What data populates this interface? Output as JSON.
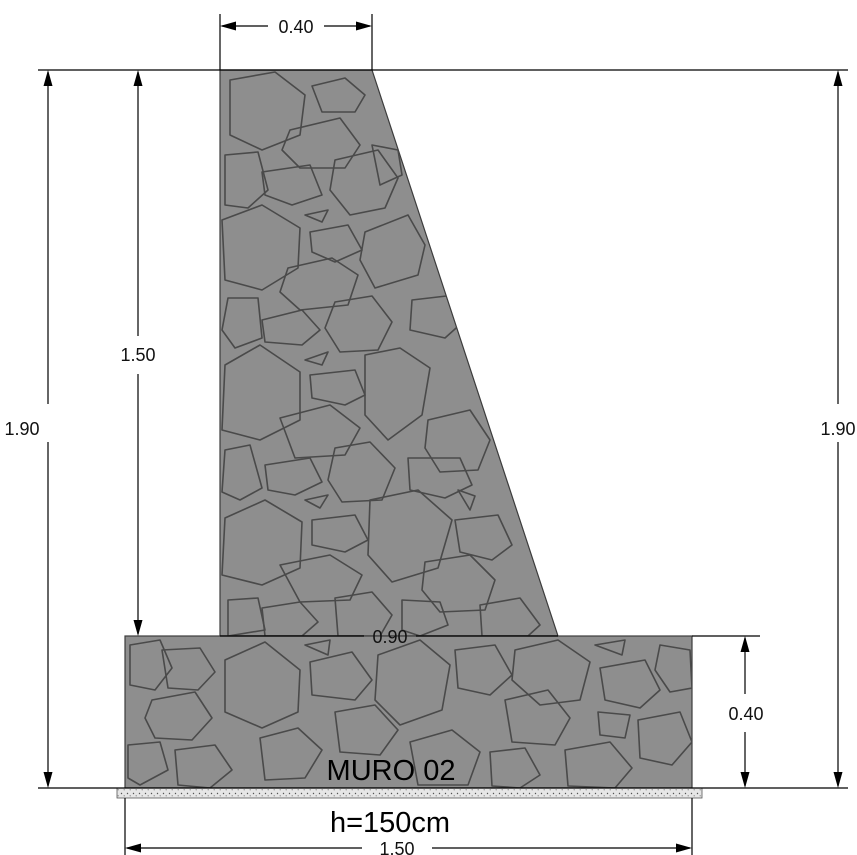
{
  "drawing": {
    "title": "MURO 02",
    "height_note": "h=150cm",
    "fill_color": "#8e8e8e",
    "stone_color": "#4a4a4a",
    "material": "stone-masonry",
    "dimensions": {
      "stem_top_width": "0.40",
      "stem_height": "1.50",
      "total_height_left": "1.90",
      "total_height_right": "1.90",
      "stem_base_width": "0.90",
      "footing_height": "0.40",
      "footing_width": "1.50"
    }
  }
}
